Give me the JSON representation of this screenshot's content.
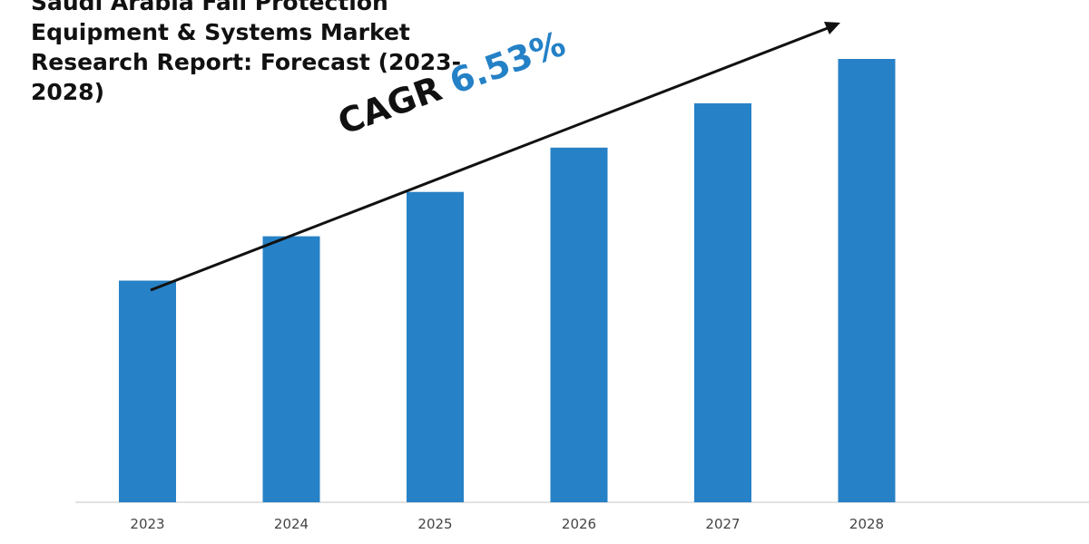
{
  "title_lines": [
    "Saudi Arabia Fall Protection",
    "Equipment & Systems Market",
    "Research Report: Forecast (2023-",
    "2028)"
  ],
  "cagr": {
    "label": "CAGR",
    "value": "6.53%"
  },
  "colors": {
    "bar": "#2781c6",
    "cagr_value": "#2481c6",
    "axis": "#d9d9d9",
    "text": "#111111",
    "tick": "#444444"
  },
  "chart_data": {
    "type": "bar",
    "categories": [
      "2023",
      "2024",
      "2025",
      "2026",
      "2027",
      "2028"
    ],
    "series": [
      {
        "values": [
          10,
          12,
          14,
          16,
          18,
          20
        ]
      }
    ],
    "title": "Saudi Arabia Fall Protection Equipment & Systems Market Research Report: Forecast (2023-2028)",
    "annotations": [
      "CAGR 6.53%"
    ],
    "trend_arrow": true,
    "grid": false,
    "legend": "none"
  }
}
